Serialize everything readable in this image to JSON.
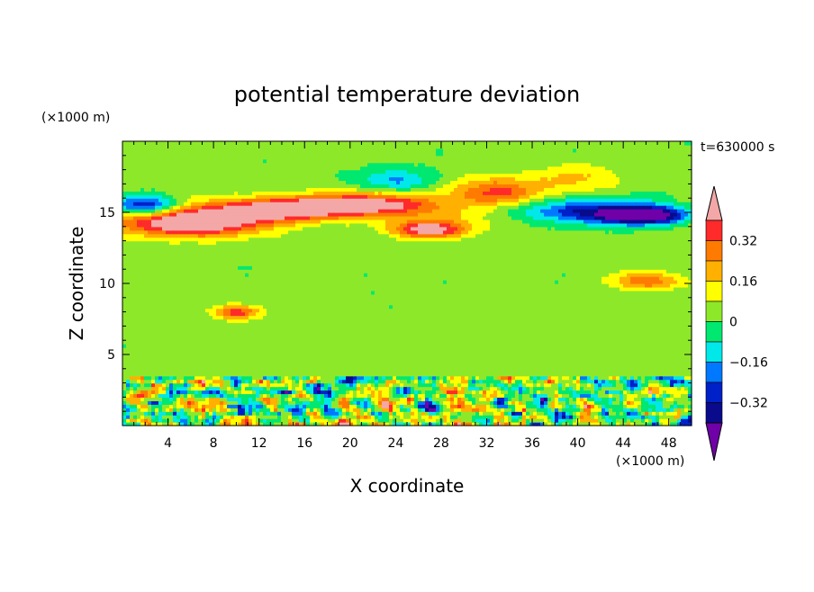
{
  "chart_data": {
    "type": "heatmap",
    "title": "potential temperature deviation",
    "xlabel": "X coordinate",
    "ylabel": "Z coordinate",
    "x_unit": "(×1000 m)",
    "y_unit": "(×1000 m)",
    "time_label": "t=630000 s",
    "xlim": [
      0,
      50
    ],
    "ylim": [
      0,
      20
    ],
    "x_ticks": [
      4,
      8,
      12,
      16,
      20,
      24,
      28,
      32,
      36,
      40,
      44,
      48
    ],
    "y_ticks": [
      5,
      10,
      15
    ],
    "colorbar": {
      "levels": [
        -0.4,
        -0.32,
        -0.24,
        -0.16,
        -0.08,
        0,
        0.08,
        0.16,
        0.24,
        0.32,
        0.4
      ],
      "labels": [
        "0.32",
        "0.16",
        "0",
        "−0.16",
        "−0.32"
      ],
      "label_values": [
        0.32,
        0.16,
        0,
        -0.16,
        -0.32
      ],
      "colors_top_to_bottom": [
        "#f4a7a7",
        "#ff2a2a",
        "#ff7a00",
        "#ffb000",
        "#ffff00",
        "#8ee82a",
        "#00e870",
        "#00e8e8",
        "#0078ff",
        "#0020c8",
        "#0a0a8c",
        "#7000a8"
      ],
      "extend": "both"
    },
    "features": [
      {
        "kind": "band",
        "z_center": 15.0,
        "z_half": 1.1,
        "x_start": 0,
        "x_end": 50,
        "value": 0.2
      },
      {
        "kind": "blob",
        "x": 6,
        "z": 14.2,
        "rx": 6,
        "rz": 0.9,
        "value": 0.45
      },
      {
        "kind": "blob",
        "x": 14,
        "z": 15.2,
        "rx": 5,
        "rz": 0.7,
        "value": 0.45
      },
      {
        "kind": "blob",
        "x": 21,
        "z": 15.6,
        "rx": 6,
        "rz": 0.8,
        "value": 0.45
      },
      {
        "kind": "blob",
        "x": 27,
        "z": 13.8,
        "rx": 3,
        "rz": 0.6,
        "value": 0.45
      },
      {
        "kind": "blob",
        "x": 2,
        "z": 15.5,
        "rx": 3,
        "rz": 0.7,
        "value": -0.45
      },
      {
        "kind": "blob",
        "x": 40,
        "z": 15.1,
        "rx": 9,
        "rz": 0.9,
        "value": -0.38
      },
      {
        "kind": "blob",
        "x": 46,
        "z": 14.8,
        "rx": 4,
        "rz": 0.6,
        "value": -0.45
      },
      {
        "kind": "blob",
        "x": 33,
        "z": 16.5,
        "rx": 4,
        "rz": 1.0,
        "value": 0.3
      },
      {
        "kind": "blob",
        "x": 40,
        "z": 17.5,
        "rx": 4,
        "rz": 1.0,
        "value": 0.15
      },
      {
        "kind": "blob",
        "x": 24,
        "z": 17.3,
        "rx": 3,
        "rz": 0.8,
        "value": -0.2
      },
      {
        "kind": "blob",
        "x": 10,
        "z": 8.0,
        "rx": 2,
        "rz": 0.5,
        "value": 0.35
      },
      {
        "kind": "blob",
        "x": 46,
        "z": 10.2,
        "rx": 3,
        "rz": 0.6,
        "value": 0.3
      },
      {
        "kind": "layer",
        "z_top": 3.6,
        "z_bottom": 0,
        "value_range": [
          -0.45,
          0.45
        ]
      }
    ]
  }
}
